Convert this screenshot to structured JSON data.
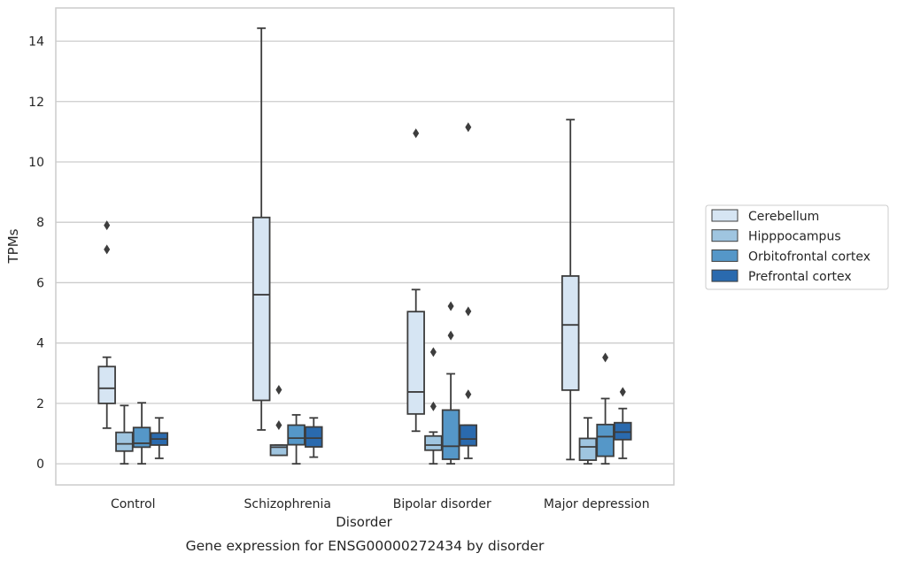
{
  "chart_data": {
    "type": "box",
    "title": "Gene expression for ENSG00000272434 by disorder",
    "xlabel": "Disorder",
    "ylabel": "TPMs",
    "ylim": [
      -0.7,
      15.1
    ],
    "yticks": [
      0,
      2,
      4,
      6,
      8,
      10,
      12,
      14
    ],
    "grid": true,
    "legend_position": "right",
    "categories": [
      "Control",
      "Schizophrenia",
      "Bipolar disorder",
      "Major depression"
    ],
    "series": [
      {
        "name": "Cerebellum",
        "color": "#d6e5f3",
        "boxes": [
          {
            "whisker_low": 1.18,
            "q1": 2.0,
            "median": 2.5,
            "q3": 3.22,
            "whisker_high": 3.53,
            "outliers": [
              7.1,
              7.9
            ]
          },
          {
            "whisker_low": 1.12,
            "q1": 2.1,
            "median": 5.6,
            "q3": 8.16,
            "whisker_high": 14.43,
            "outliers": []
          },
          {
            "whisker_low": 1.08,
            "q1": 1.65,
            "median": 2.38,
            "q3": 5.04,
            "whisker_high": 5.77,
            "outliers": [
              10.95
            ]
          },
          {
            "whisker_low": 0.14,
            "q1": 2.44,
            "median": 4.6,
            "q3": 6.22,
            "whisker_high": 11.4,
            "outliers": []
          }
        ]
      },
      {
        "name": "Hipppocampus",
        "color": "#9fc5e0",
        "boxes": [
          {
            "whisker_low": 0.0,
            "q1": 0.42,
            "median": 0.66,
            "q3": 1.04,
            "whisker_high": 1.93,
            "outliers": []
          },
          {
            "whisker_low": 0.28,
            "q1": 0.28,
            "median": 0.55,
            "q3": 0.62,
            "whisker_high": 0.62,
            "outliers": [
              1.28,
              2.45
            ]
          },
          {
            "whisker_low": 0.0,
            "q1": 0.45,
            "median": 0.62,
            "q3": 0.92,
            "whisker_high": 1.05,
            "outliers": [
              1.9,
              3.7
            ]
          },
          {
            "whisker_low": 0.0,
            "q1": 0.12,
            "median": 0.56,
            "q3": 0.84,
            "whisker_high": 1.52,
            "outliers": []
          }
        ]
      },
      {
        "name": "Orbitofrontal cortex",
        "color": "#5597c8",
        "boxes": [
          {
            "whisker_low": 0.0,
            "q1": 0.55,
            "median": 0.68,
            "q3": 1.2,
            "whisker_high": 2.02,
            "outliers": []
          },
          {
            "whisker_low": 0.0,
            "q1": 0.63,
            "median": 0.85,
            "q3": 1.28,
            "whisker_high": 1.62,
            "outliers": []
          },
          {
            "whisker_low": 0.0,
            "q1": 0.15,
            "median": 0.58,
            "q3": 1.78,
            "whisker_high": 2.98,
            "outliers": [
              4.25,
              5.22
            ]
          },
          {
            "whisker_low": 0.0,
            "q1": 0.25,
            "median": 0.9,
            "q3": 1.3,
            "whisker_high": 2.16,
            "outliers": [
              3.52
            ]
          }
        ]
      },
      {
        "name": "Prefrontal cortex",
        "color": "#2a6aae",
        "boxes": [
          {
            "whisker_low": 0.18,
            "q1": 0.62,
            "median": 0.82,
            "q3": 1.02,
            "whisker_high": 1.52,
            "outliers": []
          },
          {
            "whisker_low": 0.22,
            "q1": 0.56,
            "median": 0.85,
            "q3": 1.22,
            "whisker_high": 1.52,
            "outliers": []
          },
          {
            "whisker_low": 0.18,
            "q1": 0.6,
            "median": 0.82,
            "q3": 1.28,
            "whisker_high": 1.28,
            "outliers": [
              2.3,
              5.05,
              11.15
            ]
          },
          {
            "whisker_low": 0.18,
            "q1": 0.8,
            "median": 1.05,
            "q3": 1.36,
            "whisker_high": 1.83,
            "outliers": [
              2.38
            ]
          }
        ]
      }
    ]
  }
}
